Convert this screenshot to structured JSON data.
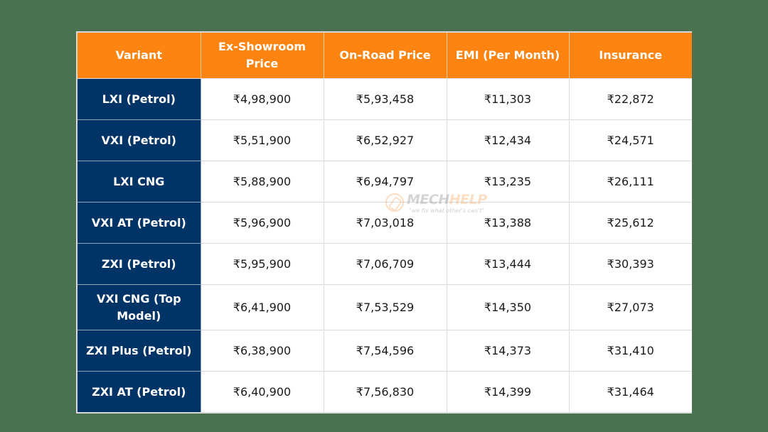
{
  "colors": {
    "background": "#4a7250",
    "header": "#fd8410",
    "variant_column": "#003366",
    "cell": "#ffffff"
  },
  "table": {
    "headers": [
      "Variant",
      "Ex-Showroom Price",
      "On-Road Price",
      "EMI (Per Month)",
      "Insurance"
    ],
    "rows": [
      {
        "variant": "LXI (Petrol)",
        "ex_showroom": "₹4,98,900",
        "on_road": "₹5,93,458",
        "emi": "₹11,303",
        "insurance": "₹22,872"
      },
      {
        "variant": "VXI (Petrol)",
        "ex_showroom": "₹5,51,900",
        "on_road": "₹6,52,927",
        "emi": "₹12,434",
        "insurance": "₹24,571"
      },
      {
        "variant": "LXI CNG",
        "ex_showroom": "₹5,88,900",
        "on_road": "₹6,94,797",
        "emi": "₹13,235",
        "insurance": "₹26,111"
      },
      {
        "variant": "VXI AT (Petrol)",
        "ex_showroom": "₹5,96,900",
        "on_road": "₹7,03,018",
        "emi": "₹13,388",
        "insurance": "₹25,612"
      },
      {
        "variant": "ZXI (Petrol)",
        "ex_showroom": "₹5,95,900",
        "on_road": "₹7,06,709",
        "emi": "₹13,444",
        "insurance": "₹30,393"
      },
      {
        "variant": "VXI CNG (Top Model)",
        "ex_showroom": "₹6,41,900",
        "on_road": "₹7,53,529",
        "emi": "₹14,350",
        "insurance": "₹27,073"
      },
      {
        "variant": "ZXI Plus (Petrol)",
        "ex_showroom": "₹6,38,900",
        "on_road": "₹7,54,596",
        "emi": "₹14,373",
        "insurance": "₹31,410"
      },
      {
        "variant": "ZXI AT (Petrol)",
        "ex_showroom": "₹6,40,900",
        "on_road": "₹7,56,830",
        "emi": "₹14,399",
        "insurance": "₹31,464"
      }
    ]
  },
  "watermark": {
    "icon": "wrench-hand-icon",
    "title_part1": "MECH",
    "title_part2": "HELP",
    "tagline": "\"we fix what other's can't\""
  }
}
